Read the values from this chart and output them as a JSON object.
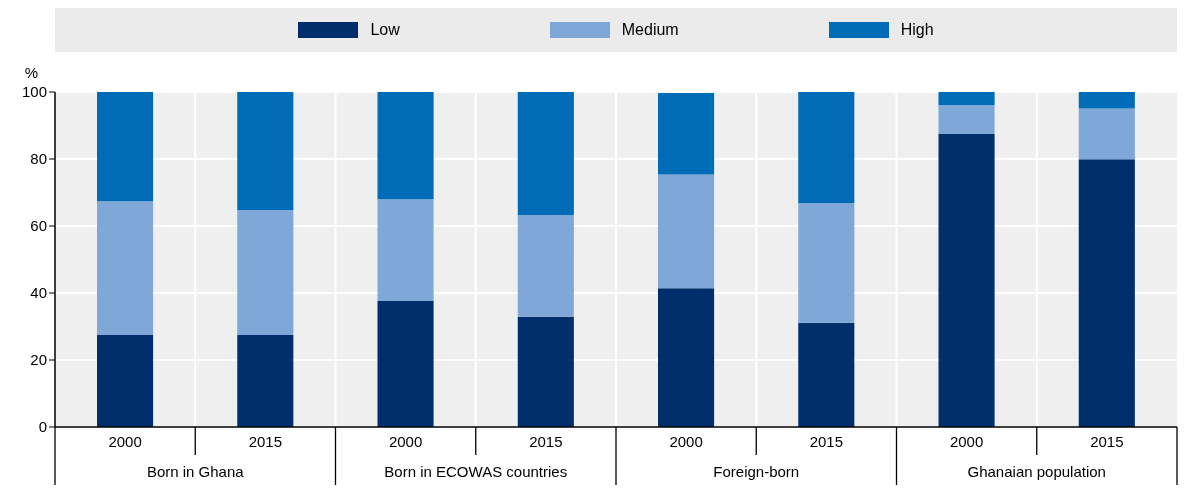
{
  "chart_data": {
    "type": "bar",
    "stacked": true,
    "ylabel": "%",
    "categories": [
      "2000",
      "2015",
      "2000",
      "2015",
      "2000",
      "2015",
      "2000",
      "2015"
    ],
    "annotations": [
      "Born in Ghana",
      "Born in ECOWAS countries",
      "Foreign-born",
      "Ghanaian population"
    ],
    "series": [
      {
        "name": "Low",
        "color": "#002f6c",
        "values": [
          27.5,
          27.5,
          37.6,
          32.9,
          41.4,
          31.1,
          87.5,
          79.9
        ]
      },
      {
        "name": "Medium",
        "color": "#7fa8d9",
        "values": [
          39.9,
          37.3,
          30.4,
          30.4,
          34.0,
          35.8,
          8.6,
          15.2
        ]
      },
      {
        "name": "High",
        "color": "#006bb6",
        "values": [
          32.6,
          35.2,
          32.0,
          36.7,
          24.3,
          33.1,
          3.9,
          4.9
        ]
      }
    ],
    "ylim": [
      0,
      100
    ],
    "yticks": [
      0,
      20,
      40,
      60,
      80,
      100
    ],
    "grid": true,
    "legend": "top"
  }
}
